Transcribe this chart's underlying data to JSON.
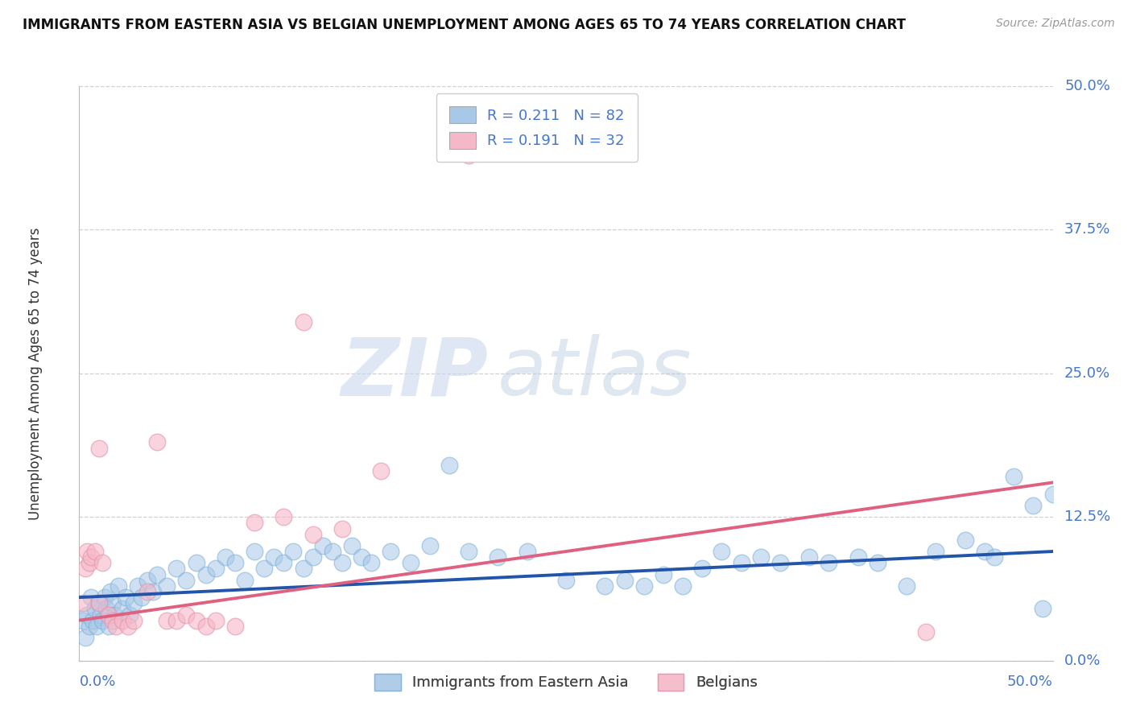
{
  "title": "IMMIGRANTS FROM EASTERN ASIA VS BELGIAN UNEMPLOYMENT AMONG AGES 65 TO 74 YEARS CORRELATION CHART",
  "source": "Source: ZipAtlas.com",
  "ylabel": "Unemployment Among Ages 65 to 74 years",
  "ytick_values": [
    0.0,
    12.5,
    25.0,
    37.5,
    50.0
  ],
  "xlim": [
    0.0,
    50.0
  ],
  "ylim": [
    0.0,
    50.0
  ],
  "legend_label1": "Immigrants from Eastern Asia",
  "legend_label2": "Belgians",
  "blue_color": "#a8c8e8",
  "blue_edge_color": "#7aafd4",
  "pink_color": "#f5b8c8",
  "pink_edge_color": "#e890a8",
  "blue_line_color": "#2255aa",
  "pink_line_color": "#e06080",
  "blue_scatter": [
    [
      0.2,
      3.5
    ],
    [
      0.3,
      2.0
    ],
    [
      0.4,
      4.0
    ],
    [
      0.5,
      3.0
    ],
    [
      0.6,
      5.5
    ],
    [
      0.7,
      3.5
    ],
    [
      0.8,
      4.5
    ],
    [
      0.9,
      3.0
    ],
    [
      1.0,
      5.0
    ],
    [
      1.1,
      4.0
    ],
    [
      1.2,
      3.5
    ],
    [
      1.3,
      5.5
    ],
    [
      1.4,
      4.5
    ],
    [
      1.5,
      3.0
    ],
    [
      1.6,
      6.0
    ],
    [
      1.7,
      5.0
    ],
    [
      1.8,
      4.0
    ],
    [
      2.0,
      6.5
    ],
    [
      2.2,
      4.5
    ],
    [
      2.4,
      5.5
    ],
    [
      2.6,
      4.0
    ],
    [
      2.8,
      5.0
    ],
    [
      3.0,
      6.5
    ],
    [
      3.2,
      5.5
    ],
    [
      3.5,
      7.0
    ],
    [
      3.8,
      6.0
    ],
    [
      4.0,
      7.5
    ],
    [
      4.5,
      6.5
    ],
    [
      5.0,
      8.0
    ],
    [
      5.5,
      7.0
    ],
    [
      6.0,
      8.5
    ],
    [
      6.5,
      7.5
    ],
    [
      7.0,
      8.0
    ],
    [
      7.5,
      9.0
    ],
    [
      8.0,
      8.5
    ],
    [
      8.5,
      7.0
    ],
    [
      9.0,
      9.5
    ],
    [
      9.5,
      8.0
    ],
    [
      10.0,
      9.0
    ],
    [
      10.5,
      8.5
    ],
    [
      11.0,
      9.5
    ],
    [
      11.5,
      8.0
    ],
    [
      12.0,
      9.0
    ],
    [
      12.5,
      10.0
    ],
    [
      13.0,
      9.5
    ],
    [
      13.5,
      8.5
    ],
    [
      14.0,
      10.0
    ],
    [
      14.5,
      9.0
    ],
    [
      15.0,
      8.5
    ],
    [
      16.0,
      9.5
    ],
    [
      17.0,
      8.5
    ],
    [
      18.0,
      10.0
    ],
    [
      19.0,
      17.0
    ],
    [
      20.0,
      9.5
    ],
    [
      21.5,
      9.0
    ],
    [
      23.0,
      9.5
    ],
    [
      25.0,
      7.0
    ],
    [
      27.0,
      6.5
    ],
    [
      28.0,
      7.0
    ],
    [
      29.0,
      6.5
    ],
    [
      30.0,
      7.5
    ],
    [
      31.0,
      6.5
    ],
    [
      32.0,
      8.0
    ],
    [
      33.0,
      9.5
    ],
    [
      34.0,
      8.5
    ],
    [
      35.0,
      9.0
    ],
    [
      36.0,
      8.5
    ],
    [
      37.5,
      9.0
    ],
    [
      38.5,
      8.5
    ],
    [
      40.0,
      9.0
    ],
    [
      41.0,
      8.5
    ],
    [
      42.5,
      6.5
    ],
    [
      44.0,
      9.5
    ],
    [
      45.5,
      10.5
    ],
    [
      46.5,
      9.5
    ],
    [
      47.0,
      9.0
    ],
    [
      48.0,
      16.0
    ],
    [
      49.0,
      13.5
    ],
    [
      49.5,
      4.5
    ],
    [
      50.0,
      14.5
    ]
  ],
  "pink_scatter": [
    [
      0.2,
      5.0
    ],
    [
      0.3,
      8.0
    ],
    [
      0.4,
      9.5
    ],
    [
      0.5,
      8.5
    ],
    [
      0.6,
      9.0
    ],
    [
      0.8,
      9.5
    ],
    [
      1.0,
      5.0
    ],
    [
      1.2,
      8.5
    ],
    [
      1.5,
      4.0
    ],
    [
      1.7,
      3.5
    ],
    [
      1.9,
      3.0
    ],
    [
      2.2,
      3.5
    ],
    [
      2.5,
      3.0
    ],
    [
      2.8,
      3.5
    ],
    [
      3.5,
      6.0
    ],
    [
      4.0,
      19.0
    ],
    [
      4.5,
      3.5
    ],
    [
      5.0,
      3.5
    ],
    [
      5.5,
      4.0
    ],
    [
      6.0,
      3.5
    ],
    [
      6.5,
      3.0
    ],
    [
      7.0,
      3.5
    ],
    [
      8.0,
      3.0
    ],
    [
      9.0,
      12.0
    ],
    [
      10.5,
      12.5
    ],
    [
      12.0,
      11.0
    ],
    [
      13.5,
      11.5
    ],
    [
      15.5,
      16.5
    ],
    [
      1.0,
      18.5
    ],
    [
      20.0,
      44.0
    ],
    [
      43.5,
      2.5
    ],
    [
      11.5,
      29.5
    ]
  ],
  "blue_trendline": {
    "x_start": 0.0,
    "y_start": 5.5,
    "x_end": 50.0,
    "y_end": 9.5
  },
  "pink_trendline": {
    "x_start": 0.0,
    "y_start": 3.5,
    "x_end": 50.0,
    "y_end": 15.5
  },
  "watermark_zip": "ZIP",
  "watermark_atlas": "atlas",
  "background_color": "#ffffff",
  "grid_color": "#d0d0d0",
  "title_fontsize": 12,
  "source_fontsize": 10,
  "tick_label_fontsize": 13,
  "ylabel_fontsize": 12,
  "legend_fontsize": 13,
  "scatter_size": 220
}
